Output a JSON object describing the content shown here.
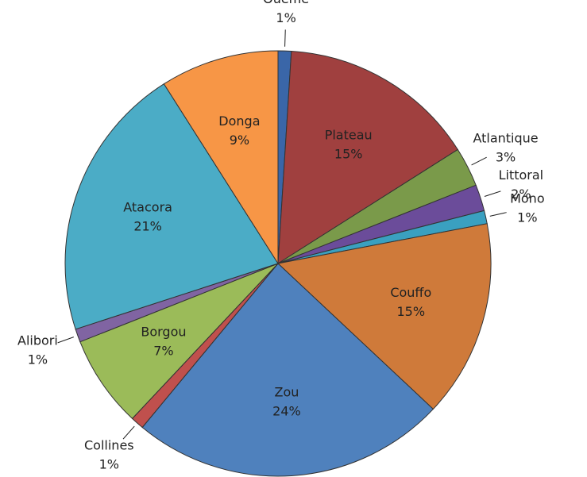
{
  "chart_data": {
    "type": "pie",
    "labels": [
      "Ouémé",
      "Plateau",
      "Atlantique",
      "Littoral",
      "Mono",
      "Couffo",
      "Zou",
      "Collines",
      "Borgou",
      "Alibori",
      "Atacora",
      "Donga"
    ],
    "values": [
      1,
      15,
      3,
      2,
      1,
      15,
      24,
      1,
      7,
      1,
      21,
      9
    ],
    "value_labels": [
      "1%",
      "15%",
      "3%",
      "2%",
      "1%",
      "15%",
      "24%",
      "1%",
      "7%",
      "1%",
      "21%",
      "9%"
    ],
    "colors": [
      "#3a66a8",
      "#a0403f",
      "#7a9a4a",
      "#6b4c9a",
      "#3aa0c0",
      "#cf7a3a",
      "#4f81bd",
      "#c0504d",
      "#9bbb59",
      "#8064a2",
      "#4bacc6",
      "#f79646"
    ]
  }
}
